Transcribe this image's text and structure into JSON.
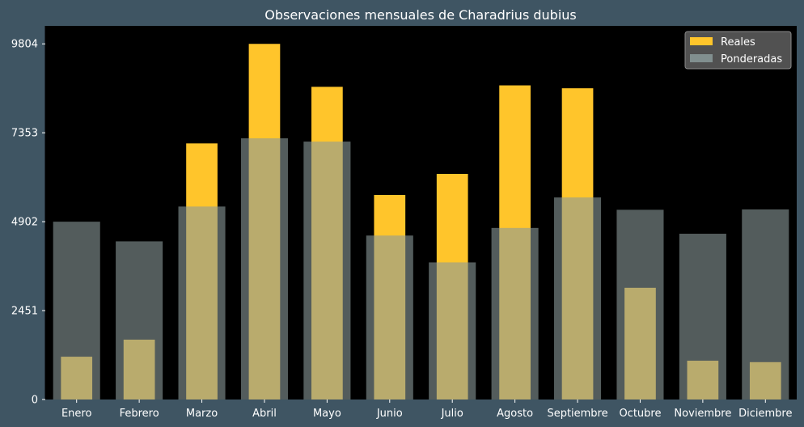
{
  "chart_data": {
    "type": "bar",
    "title": "Observaciones mensuales de Charadrius dubius",
    "xlabel": "",
    "ylabel": "",
    "categories": [
      "Enero",
      "Febrero",
      "Marzo",
      "Abril",
      "Mayo",
      "Junio",
      "Julio",
      "Agosto",
      "Septiembre",
      "Octubre",
      "Noviembre",
      "Diciembre"
    ],
    "series": [
      {
        "name": "Reales",
        "color": "#ffc52b",
        "values": [
          1180,
          1650,
          7060,
          9804,
          8620,
          5640,
          6220,
          8660,
          8580,
          3080,
          1070,
          1030
        ]
      },
      {
        "name": "Ponderadas",
        "color": "#8a9a9a",
        "values": [
          4902,
          4360,
          5320,
          7200,
          7110,
          4520,
          3780,
          4730,
          5570,
          5230,
          4570,
          5240
        ]
      }
    ],
    "ylim": [
      0,
      10300
    ],
    "yticks": [
      0,
      2451,
      4902,
      7353,
      9804
    ],
    "grid": false,
    "legend_position": "top-right",
    "background": "#3f5563",
    "plot_background": "#000000"
  }
}
